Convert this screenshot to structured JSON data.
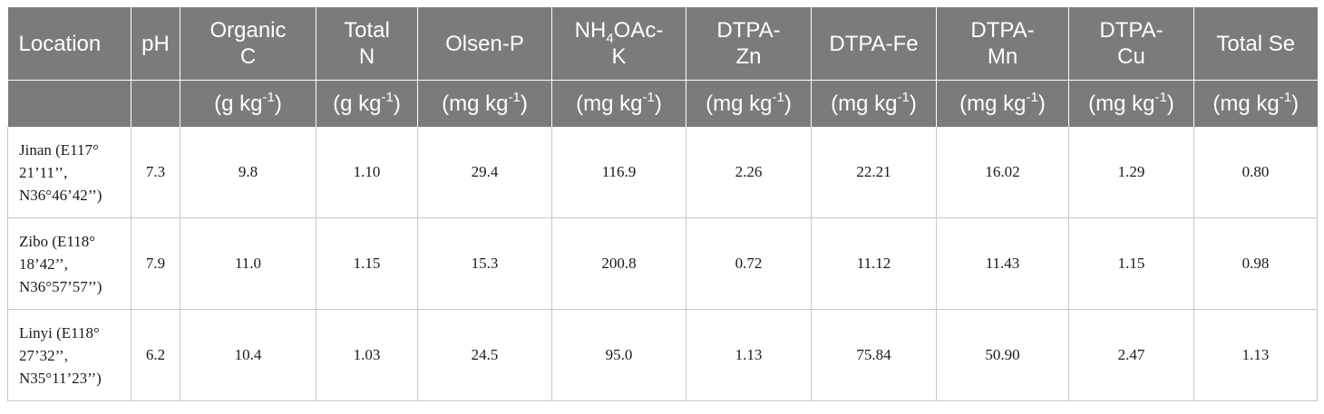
{
  "header": {
    "location": "Location",
    "ph": "pH",
    "organic_c": [
      "Organic",
      "C"
    ],
    "total_n": [
      "Total",
      "N"
    ],
    "olsen_p": "Olsen-P",
    "nh4oac_k": {
      "pre": "NH",
      "sub": "4",
      "post": "OAc-",
      "line2": "K"
    },
    "dtpa_zn": [
      "DTPA-",
      "Zn"
    ],
    "dtpa_fe": "DTPA-Fe",
    "dtpa_mn": [
      "DTPA-",
      "Mn"
    ],
    "dtpa_cu": [
      "DTPA-",
      "Cu"
    ],
    "total_se": "Total Se"
  },
  "units": {
    "organic_c": {
      "base": "(g kg",
      "exp": "-1",
      "close": ")"
    },
    "total_n": {
      "base": "(g kg",
      "exp": "-1",
      "close": ")"
    },
    "olsen_p": {
      "base": "(mg kg",
      "exp": "-1",
      "close": ")"
    },
    "nh4oac_k": {
      "base": "(mg kg",
      "exp": "-1",
      "close": ")"
    },
    "dtpa_zn": {
      "base": "(mg kg",
      "exp": "-1",
      "close": ")"
    },
    "dtpa_fe": {
      "base": "(mg kg",
      "exp": "-1",
      "close": ")"
    },
    "dtpa_mn": {
      "base": "(mg kg",
      "exp": "-1",
      "close": ")"
    },
    "dtpa_cu": {
      "base": "(mg kg",
      "exp": "-1",
      "close": ")"
    },
    "total_se": {
      "base": "(mg kg",
      "exp": "-1",
      "close": ")"
    }
  },
  "rows": [
    {
      "location": [
        "Jinan (E117°",
        "21’11’’,",
        "N36°46’42’’)"
      ],
      "values": [
        "7.3",
        "9.8",
        "1.10",
        "29.4",
        "116.9",
        "2.26",
        "22.21",
        "16.02",
        "1.29",
        "0.80"
      ]
    },
    {
      "location": [
        "Zibo (E118°",
        "18’42’’,",
        "N36°57’57’’)"
      ],
      "values": [
        "7.9",
        "11.0",
        "1.15",
        "15.3",
        "200.8",
        "0.72",
        "11.12",
        "11.43",
        "1.15",
        "0.98"
      ]
    },
    {
      "location": [
        "Linyi (E118°",
        "27’32’’,",
        "N35°11’23’’)"
      ],
      "values": [
        "6.2",
        "10.4",
        "1.03",
        "24.5",
        "95.0",
        "1.13",
        "75.84",
        "50.90",
        "2.47",
        "1.13"
      ]
    }
  ]
}
